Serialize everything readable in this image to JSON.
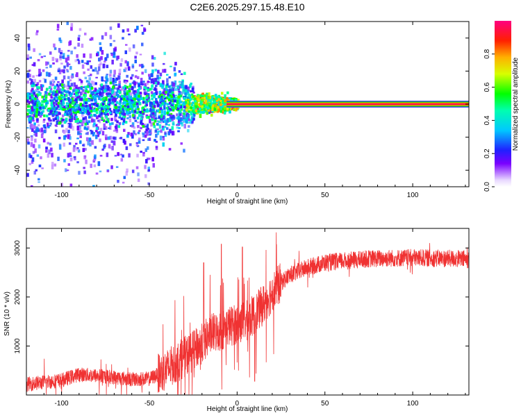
{
  "title": "C2E6.2025.297.15.48.E10",
  "colors": {
    "snr_line": "#f03232",
    "axis": "#000000",
    "center_band": "#ff1a1a",
    "center_band_edge": "#00c800"
  },
  "chart_data": [
    {
      "type": "heatmap",
      "name": "spectrogram",
      "xlabel": "Height of straight line (km)",
      "ylabel": "Frequency (Hz)",
      "xlim": [
        -120,
        132
      ],
      "ylim": [
        -50,
        50
      ],
      "xticks": [
        -100,
        -50,
        0,
        50,
        100
      ],
      "xtick_labels": [
        "-100",
        "-50",
        "0",
        "50",
        "100"
      ],
      "yticks": [
        -40,
        -20,
        0,
        20,
        40
      ],
      "ytick_labels": [
        "-40",
        "-20",
        "0",
        "20",
        "40"
      ],
      "description_regions": [
        {
          "x_range": [
            -120,
            -50
          ],
          "freq_spread": 50,
          "amplitude": "0.05-0.35"
        },
        {
          "x_range": [
            -50,
            -25
          ],
          "freq_spread": 25,
          "amplitude": "0.1-0.45"
        },
        {
          "x_range": [
            -25,
            -5
          ],
          "freq_spread": 6,
          "amplitude": "0.4-0.8"
        },
        {
          "x_range": [
            -5,
            132
          ],
          "freq_spread": 1,
          "amplitude": "0.9-1.0"
        }
      ],
      "colorbar": {
        "label": "Normalized spectral amplitude",
        "range": [
          0,
          1
        ],
        "ticks": [
          0.0,
          0.2,
          0.4,
          0.6,
          0.8
        ],
        "tick_labels": [
          "0.0",
          "0.2",
          "0.4",
          "0.6",
          "0.8"
        ]
      }
    },
    {
      "type": "line",
      "name": "snr",
      "xlabel": "Height of straight line (km)",
      "ylabel": "SNR (10 * v/v)",
      "xlim": [
        -120,
        132
      ],
      "ylim": [
        0,
        3400
      ],
      "xticks": [
        -100,
        -50,
        0,
        50,
        100
      ],
      "xtick_labels": [
        "-100",
        "-50",
        "0",
        "50",
        "100"
      ],
      "yticks": [
        1000,
        2000,
        3000
      ],
      "ytick_labels": [
        "1000",
        "2000",
        "3000"
      ],
      "series": [
        {
          "name": "SNR",
          "x": [
            -120,
            -100,
            -90,
            -75,
            -60,
            -50,
            -45,
            -40,
            -30,
            -25,
            -20,
            -15,
            -10,
            -5,
            0,
            5,
            10,
            15,
            20,
            25,
            30,
            40,
            50,
            75,
            100,
            125,
            132
          ],
          "y": [
            220,
            300,
            420,
            380,
            320,
            330,
            420,
            520,
            780,
            900,
            1050,
            1250,
            1300,
            1400,
            1450,
            1500,
            1650,
            1850,
            2100,
            2300,
            2450,
            2600,
            2700,
            2780,
            2800,
            2780,
            2760
          ],
          "spikes": [
            {
              "x": -19,
              "y": 2700
            },
            {
              "x": -9,
              "y": 3080
            },
            {
              "x": 3,
              "y": 3020
            },
            {
              "x": 10,
              "y": 280
            }
          ]
        }
      ]
    }
  ]
}
